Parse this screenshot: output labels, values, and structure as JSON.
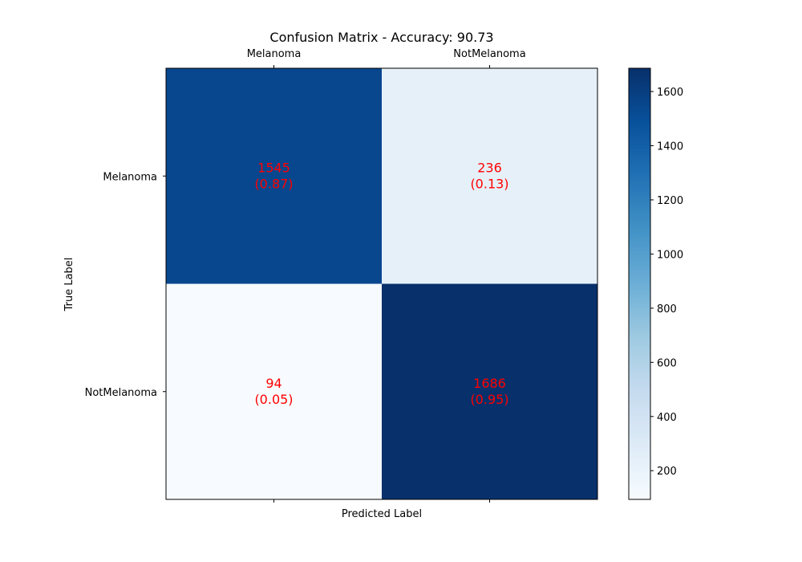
{
  "chart_data": {
    "type": "heatmap",
    "title": "Confusion Matrix - Accuracy: 90.73",
    "xlabel": "Predicted Label",
    "ylabel": "True Label",
    "x_categories": [
      "Melanoma",
      "NotMelanoma"
    ],
    "y_categories": [
      "Melanoma",
      "NotMelanoma"
    ],
    "values": [
      [
        1545,
        236
      ],
      [
        94,
        1686
      ]
    ],
    "ratios": [
      [
        0.87,
        0.13
      ],
      [
        0.05,
        0.95
      ]
    ],
    "cell_text": [
      [
        "1545",
        "(0.87)",
        "236",
        "(0.13)"
      ],
      [
        "94",
        "(0.05)",
        "1686",
        "(0.95)"
      ]
    ],
    "colorbar": {
      "min": 94,
      "max": 1686,
      "ticks": [
        200,
        400,
        600,
        800,
        1000,
        1200,
        1400,
        1600
      ],
      "tick_labels": [
        "200",
        "400",
        "600",
        "800",
        "1000",
        "1200",
        "1400",
        "1600"
      ]
    },
    "colormap": "Blues",
    "colormap_stops": [
      "#f7fbff",
      "#deebf7",
      "#c6dbef",
      "#9ecae1",
      "#6baed6",
      "#4292c6",
      "#2171b5",
      "#08519c",
      "#08306b"
    ],
    "annotation_color": "#ff0000",
    "grid": false
  }
}
